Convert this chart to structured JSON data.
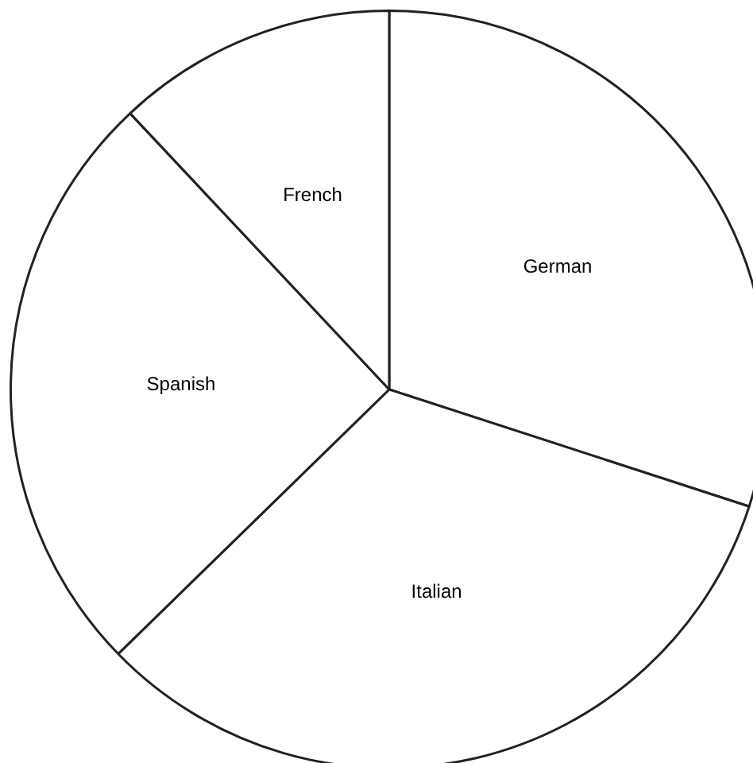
{
  "chart_data": {
    "type": "pie",
    "categories": [
      "German",
      "Italian",
      "Spanish",
      "French"
    ],
    "values": [
      30,
      32.7,
      25.3,
      12
    ],
    "colors": [
      "#ffffff",
      "#ffffff",
      "#ffffff",
      "#ffffff"
    ],
    "legend": false
  }
}
